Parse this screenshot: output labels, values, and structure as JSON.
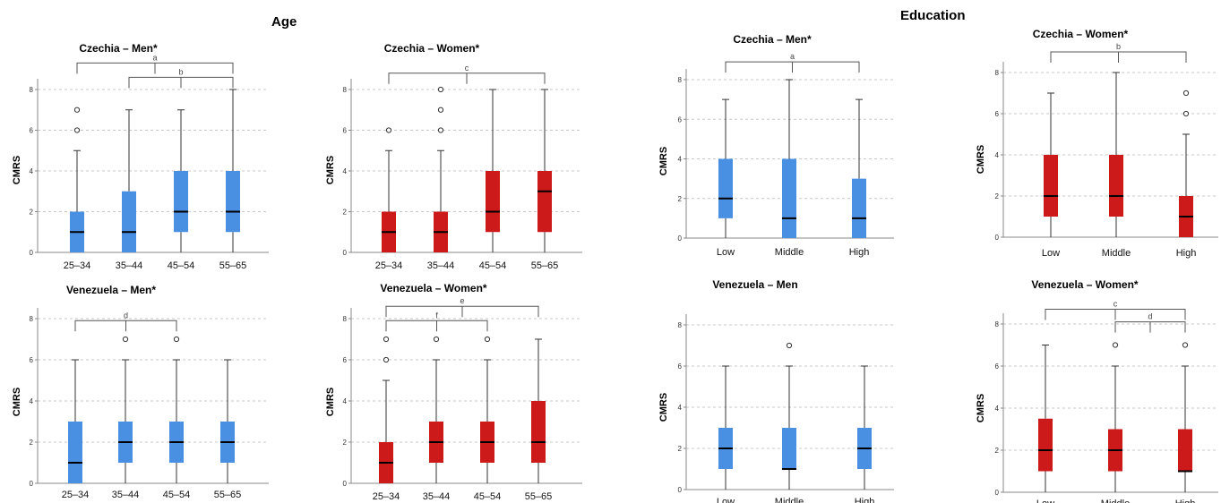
{
  "sections": {
    "age": "Age",
    "education": "Education"
  },
  "chart_data": [
    {
      "type": "boxplot",
      "section": "Age",
      "title": "Czechia – Men*",
      "ylabel": "CMRS",
      "ylim": [
        0,
        8
      ],
      "yticks": [
        0,
        2,
        4,
        6,
        8
      ],
      "grid": true,
      "color": "#4a90e2",
      "categories": [
        "25–34",
        "35–44",
        "45–54",
        "55–65"
      ],
      "boxes": [
        {
          "min": 0,
          "q1": 0,
          "median": 1,
          "q3": 2,
          "max": 5,
          "outliers": [
            6,
            7
          ]
        },
        {
          "min": 0,
          "q1": 0,
          "median": 1,
          "q3": 3,
          "max": 7,
          "outliers": []
        },
        {
          "min": 0,
          "q1": 1,
          "median": 2,
          "q3": 4,
          "max": 7,
          "outliers": []
        },
        {
          "min": 0,
          "q1": 1,
          "median": 2,
          "q3": 4,
          "max": 8,
          "outliers": []
        }
      ],
      "brackets": [
        {
          "label": "a",
          "from": 0,
          "to": 3,
          "y": 9.3
        },
        {
          "label": "b",
          "from": 1,
          "to": 3,
          "y": 8.6
        }
      ]
    },
    {
      "type": "boxplot",
      "section": "Age",
      "title": "Czechia – Women*",
      "ylabel": "CMRS",
      "ylim": [
        0,
        8
      ],
      "yticks": [
        0,
        2,
        4,
        6,
        8
      ],
      "grid": true,
      "color": "#cc1a1a",
      "categories": [
        "25–34",
        "35–44",
        "45–54",
        "55–65"
      ],
      "boxes": [
        {
          "min": 0,
          "q1": 0,
          "median": 1,
          "q3": 2,
          "max": 5,
          "outliers": [
            6
          ]
        },
        {
          "min": 0,
          "q1": 0,
          "median": 1,
          "q3": 2,
          "max": 5,
          "outliers": [
            6,
            7,
            8
          ]
        },
        {
          "min": 0,
          "q1": 1,
          "median": 2,
          "q3": 4,
          "max": 8,
          "outliers": []
        },
        {
          "min": 0,
          "q1": 1,
          "median": 3,
          "q3": 4,
          "max": 8,
          "outliers": []
        }
      ],
      "brackets": [
        {
          "label": "c",
          "from": 0,
          "to": 3,
          "y": 8.8
        }
      ]
    },
    {
      "type": "boxplot",
      "section": "Education",
      "title": "Czechia – Men*",
      "ylabel": "CMRS",
      "ylim": [
        0,
        8
      ],
      "yticks": [
        0,
        2,
        4,
        6,
        8
      ],
      "grid": true,
      "color": "#4a90e2",
      "categories": [
        "Low",
        "Middle",
        "High"
      ],
      "boxes": [
        {
          "min": 0,
          "q1": 1,
          "median": 2,
          "q3": 4,
          "max": 7,
          "outliers": []
        },
        {
          "min": 0,
          "q1": 0,
          "median": 1,
          "q3": 4,
          "max": 8,
          "outliers": []
        },
        {
          "min": 0,
          "q1": 0,
          "median": 1,
          "q3": 3,
          "max": 7,
          "outliers": []
        }
      ],
      "brackets": [
        {
          "label": "a",
          "from": 0,
          "to": 2,
          "y": 8.9
        }
      ]
    },
    {
      "type": "boxplot",
      "section": "Education",
      "title": "Czechia – Women*",
      "ylabel": "CMRS",
      "ylim": [
        0,
        8
      ],
      "yticks": [
        0,
        2,
        4,
        6,
        8
      ],
      "grid": true,
      "color": "#cc1a1a",
      "categories": [
        "Low",
        "Middle",
        "High"
      ],
      "boxes": [
        {
          "min": 0,
          "q1": 1,
          "median": 2,
          "q3": 4,
          "max": 7,
          "outliers": []
        },
        {
          "min": 0,
          "q1": 1,
          "median": 2,
          "q3": 4,
          "max": 8,
          "outliers": []
        },
        {
          "min": 0,
          "q1": 0,
          "median": 1,
          "q3": 2,
          "max": 5,
          "outliers": [
            6,
            7
          ]
        }
      ],
      "brackets": [
        {
          "label": "b",
          "from": 0,
          "to": 2,
          "y": 9.0
        }
      ]
    },
    {
      "type": "boxplot",
      "section": "Age",
      "title": "Venezuela – Men*",
      "ylabel": "CMRS",
      "ylim": [
        0,
        8
      ],
      "yticks": [
        0,
        2,
        4,
        6,
        8
      ],
      "grid": true,
      "color": "#4a90e2",
      "categories": [
        "25–34",
        "35–44",
        "45–54",
        "55–65"
      ],
      "boxes": [
        {
          "min": 0,
          "q1": 0,
          "median": 1,
          "q3": 3,
          "max": 6,
          "outliers": []
        },
        {
          "min": 0,
          "q1": 1,
          "median": 2,
          "q3": 3,
          "max": 6,
          "outliers": [
            7
          ]
        },
        {
          "min": 0,
          "q1": 1,
          "median": 2,
          "q3": 3,
          "max": 6,
          "outliers": [
            7
          ]
        },
        {
          "min": 0,
          "q1": 1,
          "median": 2,
          "q3": 3,
          "max": 6,
          "outliers": []
        }
      ],
      "brackets": [
        {
          "label": "d",
          "from": 0,
          "to": 2,
          "y": 7.9
        }
      ]
    },
    {
      "type": "boxplot",
      "section": "Age",
      "title": "Venezuela – Women*",
      "ylabel": "CMRS",
      "ylim": [
        0,
        8
      ],
      "yticks": [
        0,
        2,
        4,
        6,
        8
      ],
      "grid": true,
      "color": "#cc1a1a",
      "categories": [
        "25–34",
        "35–44",
        "45–54",
        "55–65"
      ],
      "boxes": [
        {
          "min": 0,
          "q1": 0,
          "median": 1,
          "q3": 2,
          "max": 5,
          "outliers": [
            6,
            7
          ]
        },
        {
          "min": 0,
          "q1": 1,
          "median": 2,
          "q3": 3,
          "max": 6,
          "outliers": [
            7
          ]
        },
        {
          "min": 0,
          "q1": 1,
          "median": 2,
          "q3": 3,
          "max": 6,
          "outliers": [
            7
          ]
        },
        {
          "min": 0,
          "q1": 1,
          "median": 2,
          "q3": 4,
          "max": 7,
          "outliers": []
        }
      ],
      "brackets": [
        {
          "label": "e",
          "from": 0,
          "to": 3,
          "y": 8.6
        },
        {
          "label": "f",
          "from": 0,
          "to": 2,
          "y": 7.9
        }
      ]
    },
    {
      "type": "boxplot",
      "section": "Education",
      "title": "Venezuela – Men",
      "ylabel": "CMRS",
      "ylim": [
        0,
        8
      ],
      "yticks": [
        0,
        2,
        4,
        6,
        8
      ],
      "grid": true,
      "color": "#4a90e2",
      "categories": [
        "Low",
        "Middle",
        "High"
      ],
      "boxes": [
        {
          "min": 0,
          "q1": 1,
          "median": 2,
          "q3": 3,
          "max": 6,
          "outliers": []
        },
        {
          "min": 0,
          "q1": 1,
          "median": 1,
          "q3": 3,
          "max": 6,
          "outliers": [
            7
          ]
        },
        {
          "min": 0,
          "q1": 1,
          "median": 2,
          "q3": 3,
          "max": 6,
          "outliers": []
        }
      ],
      "brackets": []
    },
    {
      "type": "boxplot",
      "section": "Education",
      "title": "Venezuela – Women*",
      "ylabel": "CMRS",
      "ylim": [
        0,
        8
      ],
      "yticks": [
        0,
        2,
        4,
        6,
        8
      ],
      "grid": true,
      "color": "#cc1a1a",
      "categories": [
        "Low",
        "Middle",
        "High"
      ],
      "boxes": [
        {
          "min": 0,
          "q1": 1,
          "median": 2,
          "q3": 3.5,
          "max": 7,
          "outliers": []
        },
        {
          "min": 0,
          "q1": 1,
          "median": 2,
          "q3": 3,
          "max": 6,
          "outliers": [
            7
          ]
        },
        {
          "min": 0,
          "q1": 1,
          "median": 1,
          "q3": 3,
          "max": 6,
          "outliers": [
            7
          ]
        }
      ],
      "brackets": [
        {
          "label": "c",
          "from": 0,
          "to": 2,
          "y": 8.7
        },
        {
          "label": "d",
          "from": 1,
          "to": 2,
          "y": 8.1
        }
      ]
    }
  ]
}
